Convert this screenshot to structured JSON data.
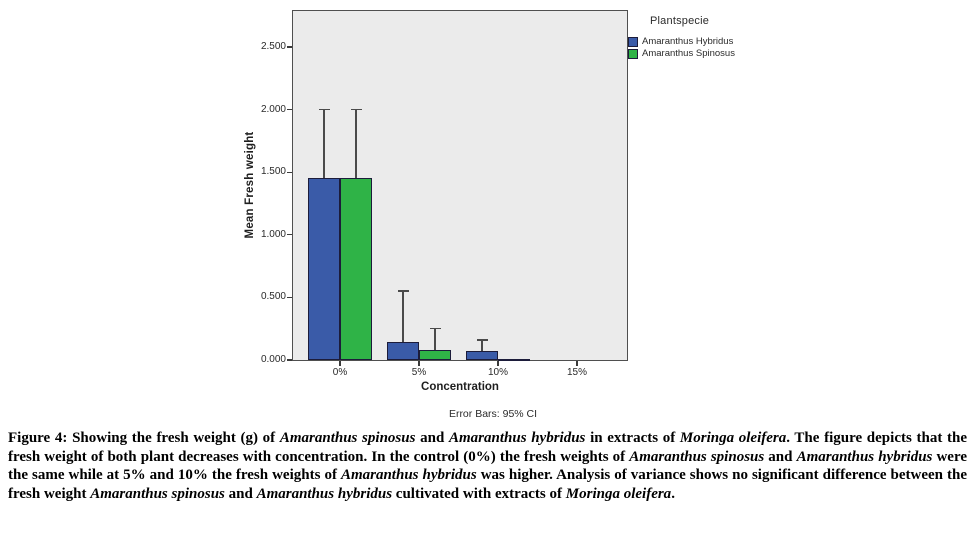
{
  "figure": {
    "legend_title": "Plantspecie",
    "footnote": "Error Bars: 95% CI",
    "xlabel": "Concentration",
    "ylabel": "Mean Fresh weight"
  },
  "chart_data": {
    "type": "bar",
    "title": "",
    "categories": [
      "0%",
      "5%",
      "10%",
      "15%"
    ],
    "series": [
      {
        "name": "Amaranthus Hybridus",
        "color": "#3a5ba8",
        "values": [
          1.45,
          0.14,
          0.07,
          0
        ],
        "ci_upper": [
          2.0,
          0.55,
          0.16,
          0
        ]
      },
      {
        "name": "Amaranthus Spinosus",
        "color": "#2fb347",
        "values": [
          1.45,
          0.08,
          0.01,
          0
        ],
        "ci_upper": [
          2.0,
          0.25,
          0,
          0
        ]
      }
    ],
    "xlabel": "Concentration",
    "ylabel": "Mean Fresh weight",
    "ylim": [
      0,
      2.5
    ],
    "yticks": [
      0,
      0.5,
      1.0,
      1.5,
      2.0,
      2.5
    ],
    "ytick_labels": [
      "0.000",
      "0.500",
      "1.000",
      "1.500",
      "2.000",
      "2.500"
    ],
    "grid": false,
    "legend_title": "Plantspecie",
    "legend_position": "outside-top-right",
    "error_bars": "95% CI",
    "plot_background": "#ebebeb"
  },
  "caption": {
    "segments": [
      {
        "text": "Figure 4: Showing the fresh weight (g) of ",
        "italic": false
      },
      {
        "text": "Amaranthus spinosus",
        "italic": true
      },
      {
        "text": " and ",
        "italic": false
      },
      {
        "text": "Amaranthus hybridus",
        "italic": true
      },
      {
        "text": " in extracts of ",
        "italic": false
      },
      {
        "text": "Moringa oleifera",
        "italic": true
      },
      {
        "text": ". The figure depicts that the fresh weight of both plant decreases with concentration. In the control (0%) the fresh weights of ",
        "italic": false
      },
      {
        "text": "Amaranthus spinosus",
        "italic": true
      },
      {
        "text": " and ",
        "italic": false
      },
      {
        "text": "Amaranthus hybridus",
        "italic": true
      },
      {
        "text": " were the same while at 5% and 10% the fresh weights of ",
        "italic": false
      },
      {
        "text": "Amaranthus hybridus",
        "italic": true
      },
      {
        "text": " was higher. Analysis of variance shows no significant difference between the fresh weight ",
        "italic": false
      },
      {
        "text": "Amaranthus spinosus",
        "italic": true
      },
      {
        "text": " and ",
        "italic": false
      },
      {
        "text": "Amaranthus hybridus",
        "italic": true
      },
      {
        "text": " cultivated with extracts of ",
        "italic": false
      },
      {
        "text": "Moringa oleifera",
        "italic": true
      },
      {
        "text": ".",
        "italic": false
      }
    ]
  }
}
